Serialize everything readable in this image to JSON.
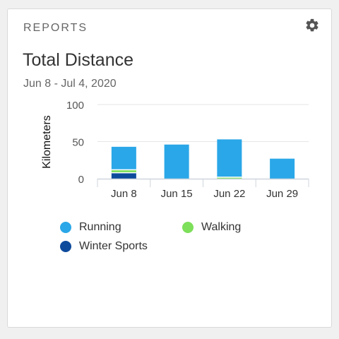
{
  "card": {
    "section_label": "REPORTS",
    "settings_icon": "gear-icon",
    "title": "Total Distance",
    "subtitle": "Jun 8 - Jul 4, 2020"
  },
  "colors": {
    "running": "#2aa7e8",
    "walking": "#7ddf5a",
    "winter_sports": "#0d4a9c"
  },
  "chart_data": {
    "type": "bar",
    "stacked": true,
    "categories": [
      "Jun 8",
      "Jun 15",
      "Jun 22",
      "Jun 29"
    ],
    "series": [
      {
        "name": "Winter Sports",
        "values": [
          8,
          0,
          0,
          0
        ],
        "color": "#0d4a9c"
      },
      {
        "name": "Walking",
        "values": [
          4,
          0,
          2,
          0
        ],
        "color": "#7ddf5a"
      },
      {
        "name": "Running",
        "values": [
          31,
          46,
          51,
          27
        ],
        "color": "#2aa7e8"
      }
    ],
    "ylabel": "Kilometers",
    "ylim": [
      0,
      100
    ],
    "yticks": [
      0,
      50,
      100
    ],
    "grid": true,
    "legend_position": "bottom"
  },
  "legend": [
    {
      "label": "Running",
      "color": "#2aa7e8"
    },
    {
      "label": "Walking",
      "color": "#7ddf5a"
    },
    {
      "label": "Winter Sports",
      "color": "#0d4a9c"
    }
  ]
}
